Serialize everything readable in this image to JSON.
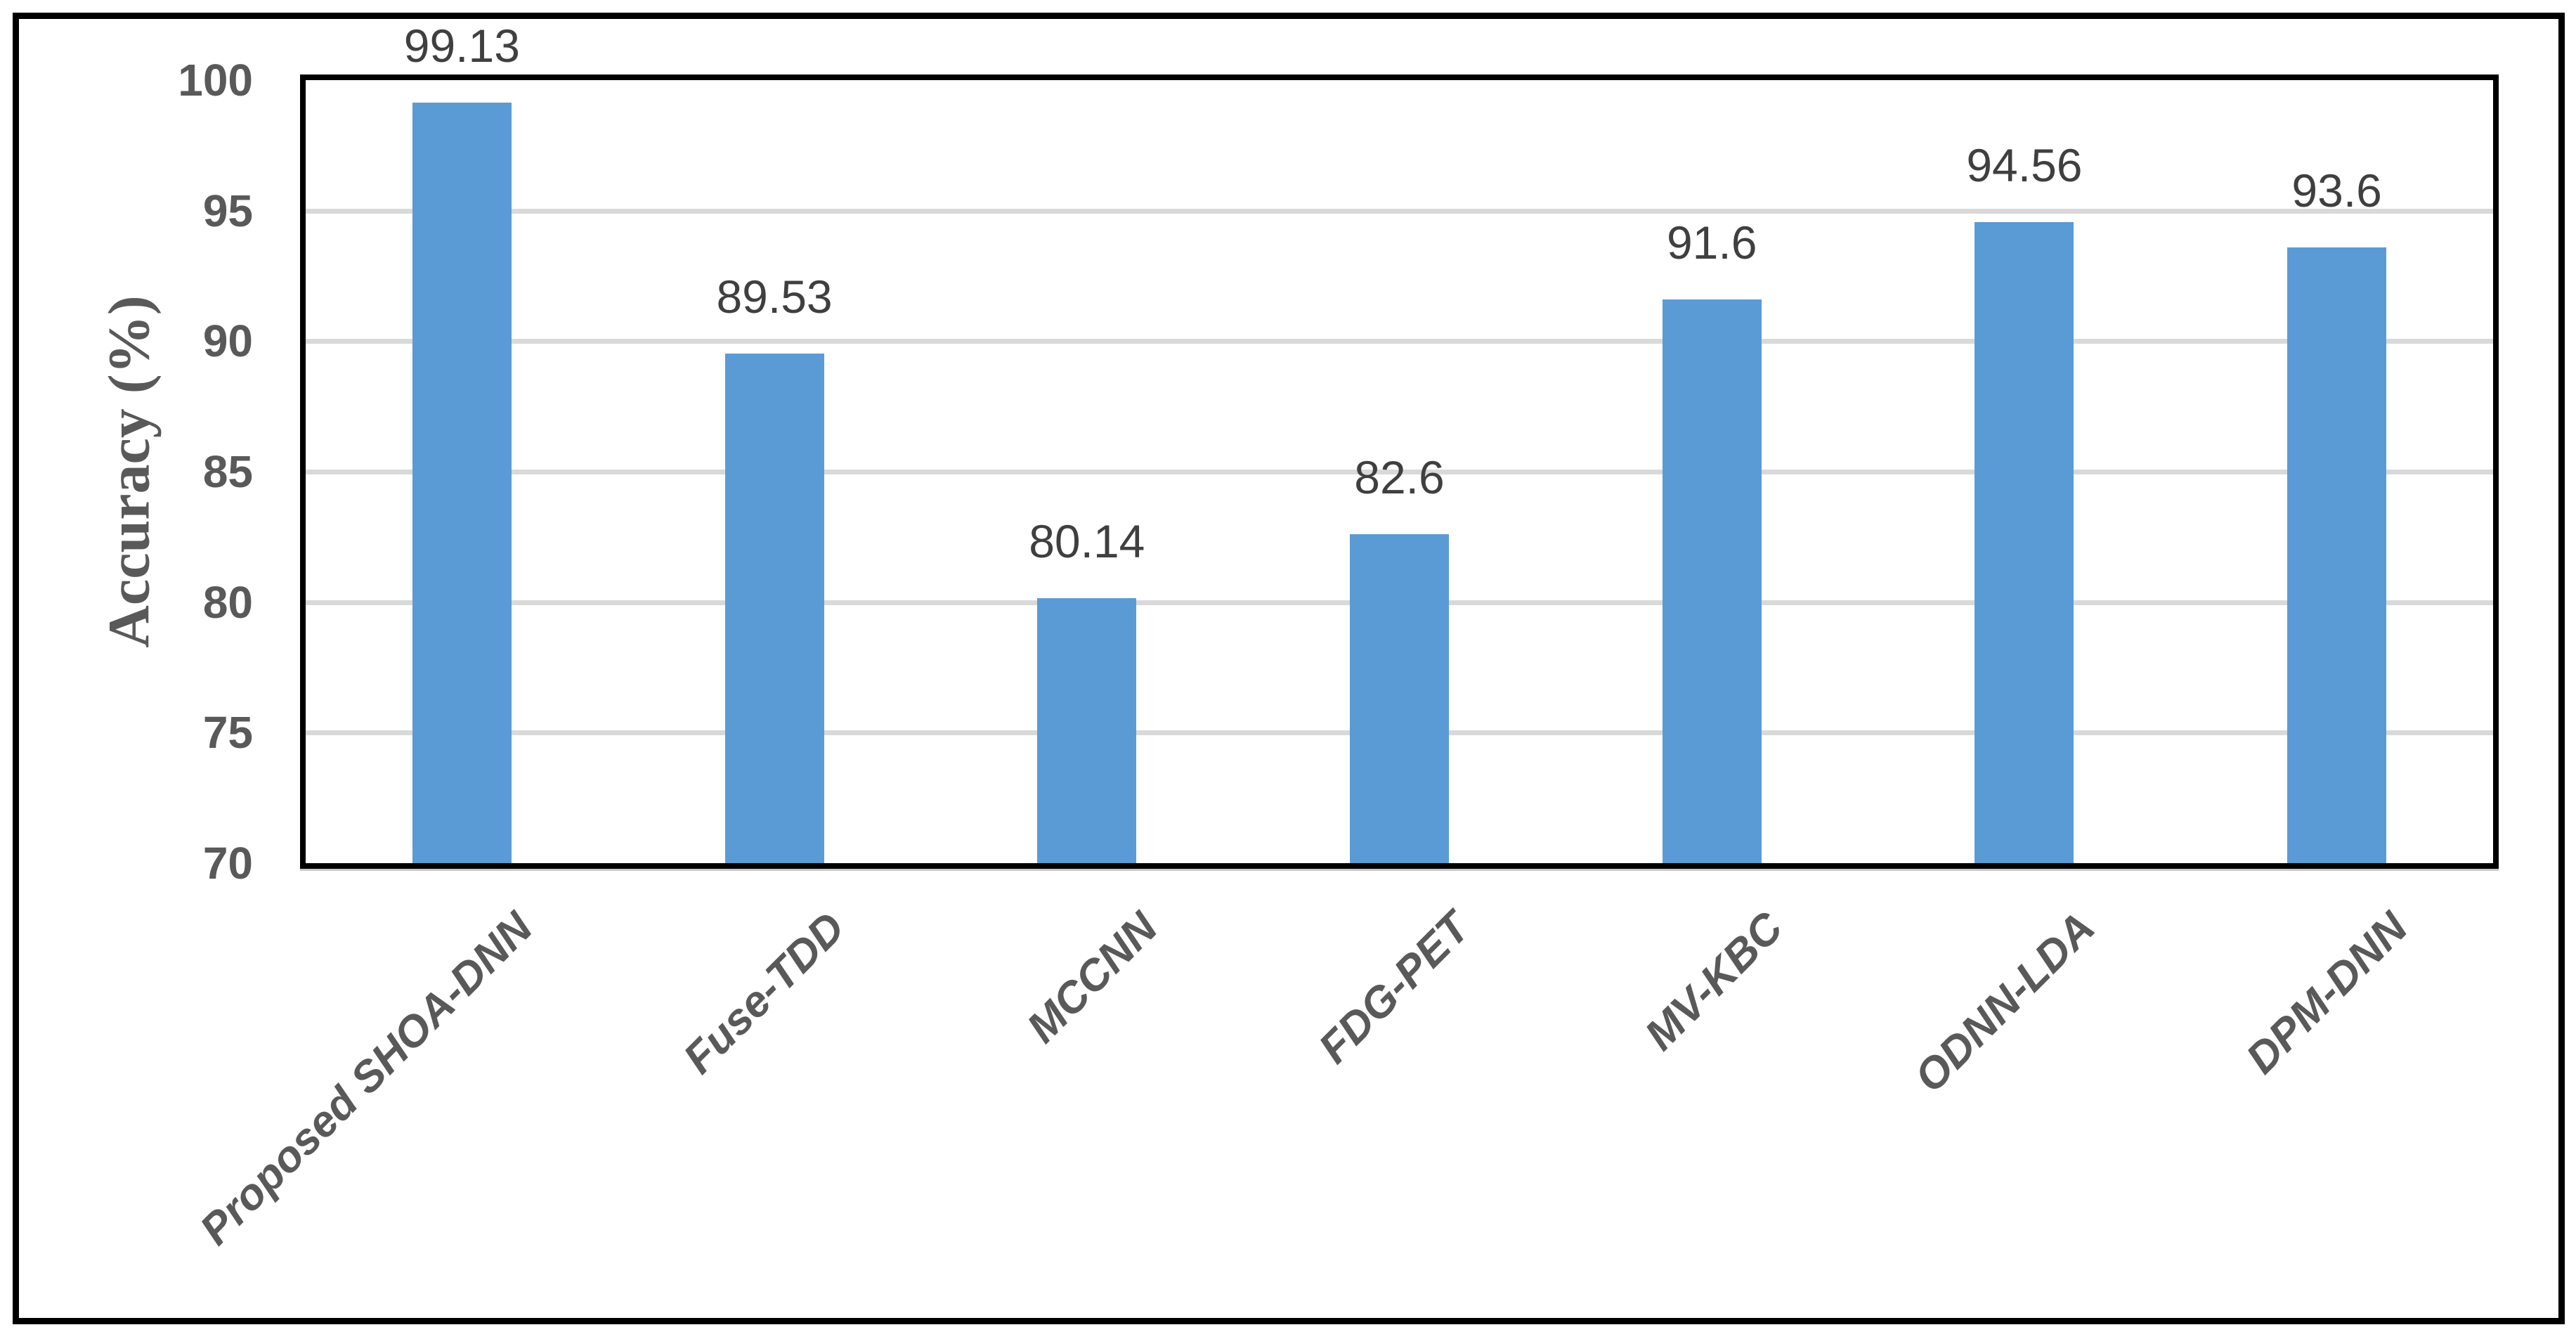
{
  "chart_data": {
    "type": "bar",
    "title": "",
    "xlabel": "",
    "ylabel": "Accuracy (%)",
    "categories": [
      "Proposed SHOA-DNN",
      "Fuse-TDD",
      "MCCNN",
      "FDG-PET",
      "MV-KBC",
      "ODNN-LDA",
      "DPM-DNN"
    ],
    "values": [
      99.13,
      89.53,
      80.14,
      82.6,
      91.6,
      94.56,
      93.6
    ],
    "data_labels": [
      "99.13",
      "89.53",
      "80.14",
      "82.6",
      "91.6",
      "94.56",
      "93.6"
    ],
    "ylim": [
      70,
      100
    ],
    "ytick_step": 5,
    "yticks": [
      70,
      75,
      80,
      85,
      90,
      95,
      100
    ],
    "gridline_values": [
      75,
      80,
      85,
      90,
      95
    ],
    "grid": true,
    "legend": false,
    "x_label_rotation_deg": 45,
    "colors": {
      "bar": "#5B9BD5",
      "gridline": "#D9D9D9",
      "plot_border": "#000000",
      "outer_border": "#000000",
      "tick_label": "#595959",
      "data_label": "#3F3F3F",
      "axis_title": "#595959",
      "background": "#FFFFFF"
    }
  }
}
